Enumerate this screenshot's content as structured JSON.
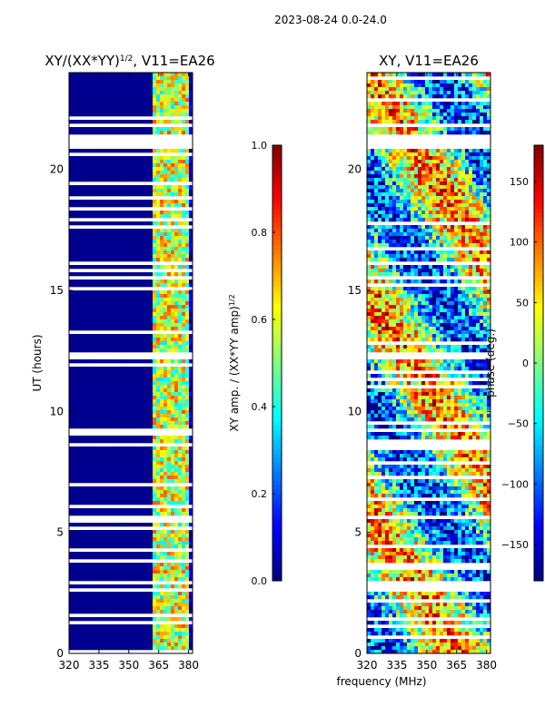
{
  "suptitle": "2023-08-24 0.0-24.0",
  "shared_xlabel": "frequency (MHz)",
  "chart_data": [
    {
      "type": "heatmap",
      "title_main": "XY/(XX*YY)",
      "title_exp": "1/2",
      "title_tail": ", V11=EA26",
      "xlabel": "",
      "ylabel": "UT (hours)",
      "xlim": [
        320,
        382
      ],
      "ylim": [
        0,
        24
      ],
      "xticks": [
        320,
        335,
        350,
        365,
        380
      ],
      "yticks": [
        0,
        5,
        10,
        15,
        20
      ],
      "colorbar": {
        "label_main": "XY amp. / (XX*YY amp)",
        "label_exp": "1/2",
        "range": [
          0.0,
          1.0
        ],
        "ticks": [
          "0.0",
          "0.2",
          "0.4",
          "0.6",
          "0.8",
          "1.0"
        ],
        "tick_values": [
          0.0,
          0.2,
          0.4,
          0.6,
          0.8,
          1.0
        ],
        "colormap": "jet"
      },
      "band_freq_range": [
        362,
        382
      ],
      "band_channels": [
        362,
        364,
        366,
        368,
        370,
        372,
        374,
        376,
        378,
        380
      ],
      "gaps_hours": [
        [
          20.8,
          21.5
        ],
        [
          12.1,
          12.5
        ],
        [
          15.4,
          15.6
        ],
        [
          9.2,
          9.3
        ],
        [
          7.3,
          7.4
        ],
        [
          2.9,
          3.0
        ],
        [
          2.6,
          2.7
        ],
        [
          1.2,
          1.3
        ]
      ]
    },
    {
      "type": "heatmap",
      "title_main": "XY, V11=EA26",
      "xlabel": "",
      "ylabel": "",
      "xlim": [
        320,
        382
      ],
      "ylim": [
        0,
        24
      ],
      "xticks": [
        320,
        335,
        350,
        365,
        380
      ],
      "yticks": [
        0,
        5,
        10,
        15,
        20
      ],
      "colorbar": {
        "label_main": "phase (deg.)",
        "range": [
          -180,
          180
        ],
        "ticks": [
          "150",
          "100",
          "50",
          "0",
          "−50",
          "−100",
          "−150"
        ],
        "tick_values": [
          150,
          100,
          50,
          0,
          -50,
          -100,
          -150
        ],
        "colormap": "jet"
      },
      "gaps_hours": [
        [
          20.8,
          21.5
        ],
        [
          12.1,
          12.5
        ],
        [
          15.4,
          15.6
        ],
        [
          9.2,
          9.3
        ],
        [
          7.3,
          7.4
        ],
        [
          2.9,
          3.0
        ],
        [
          1.3,
          1.5
        ]
      ]
    }
  ],
  "colors": {
    "frame": "#000000",
    "background": "#ffffff",
    "low_amp": "#00008f"
  }
}
